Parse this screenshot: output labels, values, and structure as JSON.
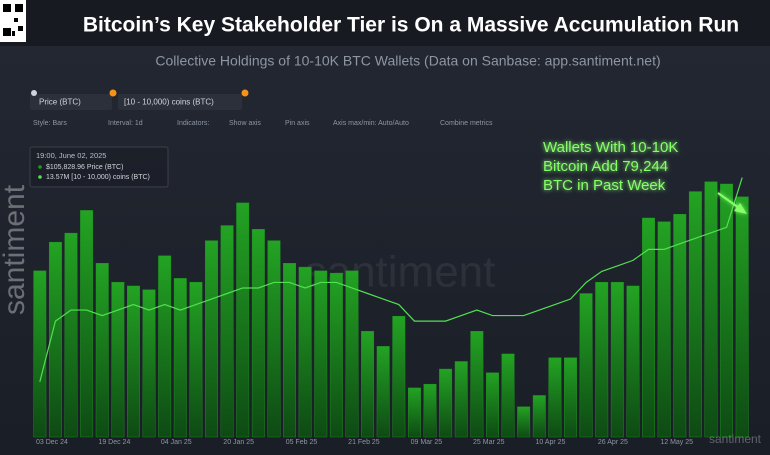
{
  "title": "Bitcoin’s Key Stakeholder Tier is On a Massive Accumulation Run",
  "subtitle": "Collective Holdings of 10-10K BTC Wallets (Data on Sanbase: app.santiment.net)",
  "toolbar": [
    "Style: Bars",
    "Interval: 1d",
    "Indicators:",
    "Show axis",
    "Pin axis",
    "Axis max/min: Auto/Auto",
    "Combine metrics"
  ],
  "tooltip": [
    "19:00, June 02, 2025",
    "$105,828.96 Price (BTC)",
    "13.57M [10 - 10,000) coins (BTC)"
  ],
  "watermark": "santiment",
  "chart_data": {
    "type": "bar",
    "annotation": [
      "Wallets With 10-10K",
      "Bitcoin  Add 79,244",
      "BTC in Past Week"
    ],
    "categories": [
      "03 Dec 24",
      null,
      null,
      null,
      "19 Dec 24",
      null,
      null,
      null,
      "04 Jan 25",
      null,
      null,
      null,
      "20 Jan 25",
      null,
      null,
      null,
      "05 Feb 25",
      null,
      null,
      null,
      "21 Feb 25",
      null,
      null,
      null,
      "09 Mar 25",
      null,
      null,
      null,
      "25 Mar 25",
      null,
      null,
      null,
      "10 Apr 25",
      null,
      null,
      null,
      "26 Apr 25",
      null,
      null,
      null,
      "12 May 25",
      null,
      null,
      null,
      null,
      null
    ],
    "ylim": [
      74000,
      112000
    ],
    "y2lim": [
      13.1,
      13.62
    ],
    "series": [
      {
        "name": "Price (BTC)",
        "color": "#1f9a1f",
        "values": [
          96000,
          99800,
          101000,
          104000,
          97000,
          94500,
          94000,
          93500,
          98000,
          95000,
          94500,
          100000,
          102000,
          105000,
          101500,
          100000,
          97000,
          96500,
          96000,
          95700,
          96000,
          88000,
          86000,
          90000,
          80500,
          81000,
          83000,
          84000,
          88000,
          82500,
          85000,
          78000,
          79500,
          84500,
          84500,
          93000,
          94500,
          94500,
          94000,
          103000,
          102500,
          103500,
          106500,
          107800,
          107500,
          105800
        ]
      },
      {
        "name": "[10 - 10,000) coins (BTC)",
        "color": "#52e052",
        "axis": "y2",
        "values": [
          13.2,
          13.31,
          13.33,
          13.33,
          13.32,
          13.33,
          13.34,
          13.33,
          13.34,
          13.33,
          13.34,
          13.35,
          13.36,
          13.37,
          13.37,
          13.38,
          13.38,
          13.37,
          13.38,
          13.38,
          13.37,
          13.36,
          13.35,
          13.34,
          13.31,
          13.31,
          13.31,
          13.32,
          13.33,
          13.32,
          13.32,
          13.32,
          13.33,
          13.34,
          13.35,
          13.38,
          13.4,
          13.41,
          13.42,
          13.44,
          13.44,
          13.45,
          13.46,
          13.47,
          13.48,
          13.57
        ]
      }
    ]
  }
}
